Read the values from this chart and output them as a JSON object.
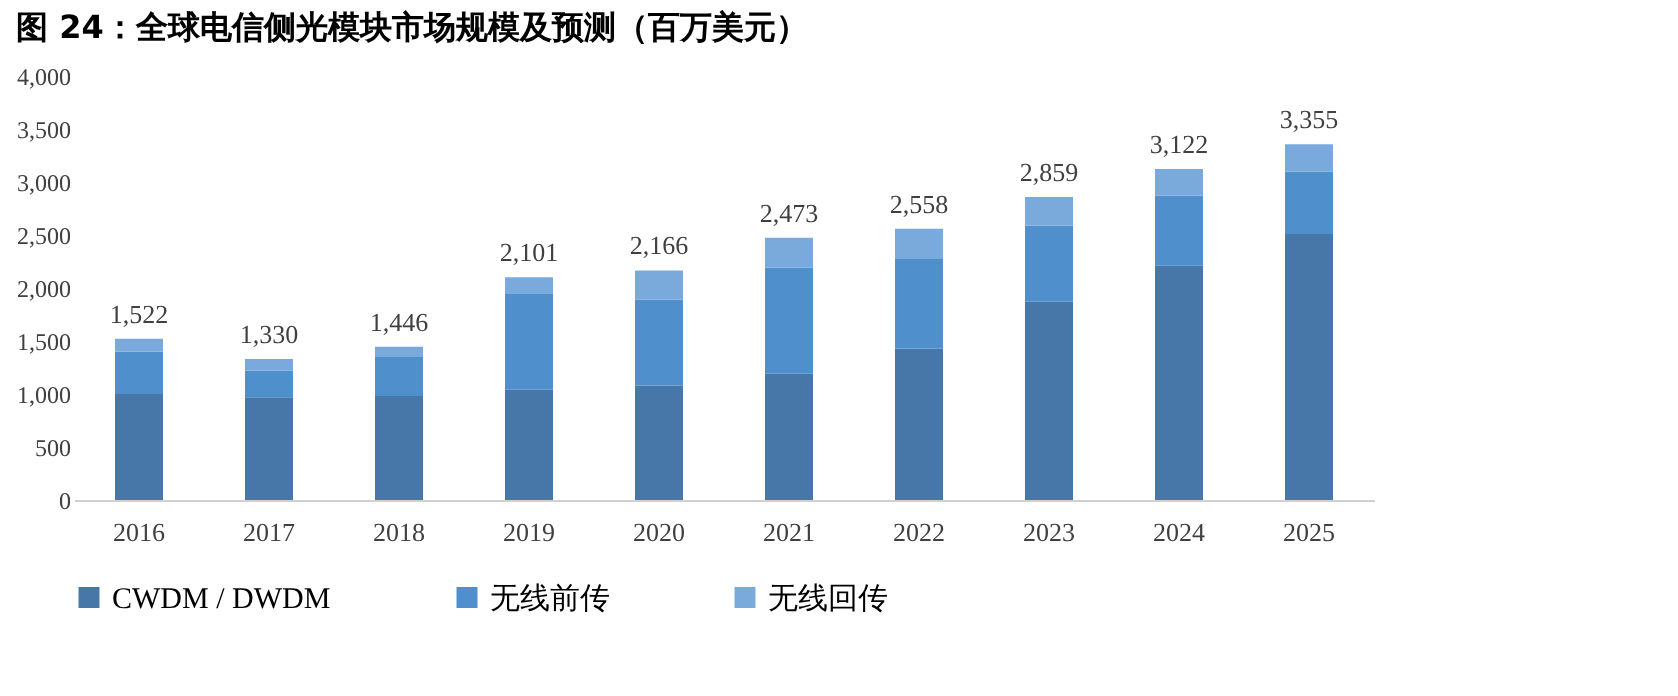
{
  "chart_data": {
    "type": "bar",
    "title": "图 24：全球电信侧光模块市场规模及预测（百万美元）",
    "categories": [
      "2016",
      "2017",
      "2018",
      "2019",
      "2020",
      "2021",
      "2022",
      "2023",
      "2024",
      "2025"
    ],
    "stacked": true,
    "series": [
      {
        "name": "CWDM / DWDM",
        "color": "#4677a8",
        "values": [
          1000,
          970,
          980,
          1040,
          1080,
          1190,
          1430,
          1870,
          2210,
          2510
        ]
      },
      {
        "name": "无线前传",
        "color": "#4f8fcc",
        "values": [
          400,
          250,
          370,
          910,
          810,
          1000,
          850,
          720,
          660,
          590
        ]
      },
      {
        "name": "无线回传",
        "color": "#7aaadc",
        "values": [
          122,
          110,
          96,
          151,
          276,
          283,
          278,
          269,
          252,
          255
        ]
      }
    ],
    "totals": [
      "1,522",
      "1,330",
      "1,446",
      "2,101",
      "2,166",
      "2,473",
      "2,558",
      "2,859",
      "3,122",
      "3,355"
    ],
    "ylim": [
      0,
      4000
    ],
    "yticks": [
      0,
      500,
      {
        "value": 1000,
        "label": "1,000"
      },
      {
        "value": 1500,
        "label": "1,500"
      },
      {
        "value": 2000,
        "label": "2,000"
      },
      {
        "value": 2500,
        "label": "2,500"
      },
      {
        "value": 3000,
        "label": "3,000"
      },
      {
        "value": 3500,
        "label": "3,500"
      },
      {
        "value": 4000,
        "label": "4,000"
      }
    ],
    "grid": false,
    "legend": "bottom"
  }
}
